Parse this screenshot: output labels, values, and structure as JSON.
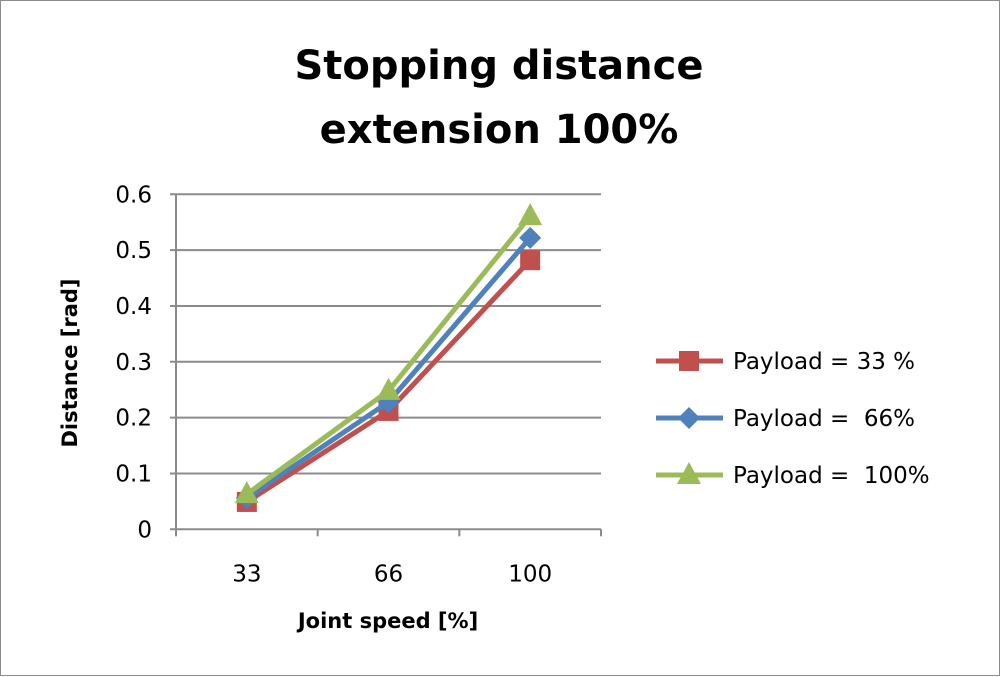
{
  "chart_data": {
    "type": "line",
    "title_lines": [
      "Stopping distance",
      "extension 100%"
    ],
    "xlabel": "Joint speed [%]",
    "ylabel": "Distance [rad]",
    "categories": [
      "33",
      "66",
      "100"
    ],
    "ylim": [
      0,
      0.6
    ],
    "yticks": [
      "0",
      "0.1",
      "0.2",
      "0.3",
      "0.4",
      "0.5",
      "0.6"
    ],
    "grid": true,
    "legend_position": "right",
    "series": [
      {
        "name": "Payload = 33 %",
        "values": [
          0.049,
          0.212,
          0.482
        ],
        "color": "#c0504d",
        "marker": "square"
      },
      {
        "name": "Payload =  66%",
        "values": [
          0.056,
          0.228,
          0.522
        ],
        "color": "#4f81bd",
        "marker": "diamond"
      },
      {
        "name": "Payload =  100%",
        "values": [
          0.063,
          0.248,
          0.561
        ],
        "color": "#9bbb59",
        "marker": "triangle"
      }
    ]
  }
}
